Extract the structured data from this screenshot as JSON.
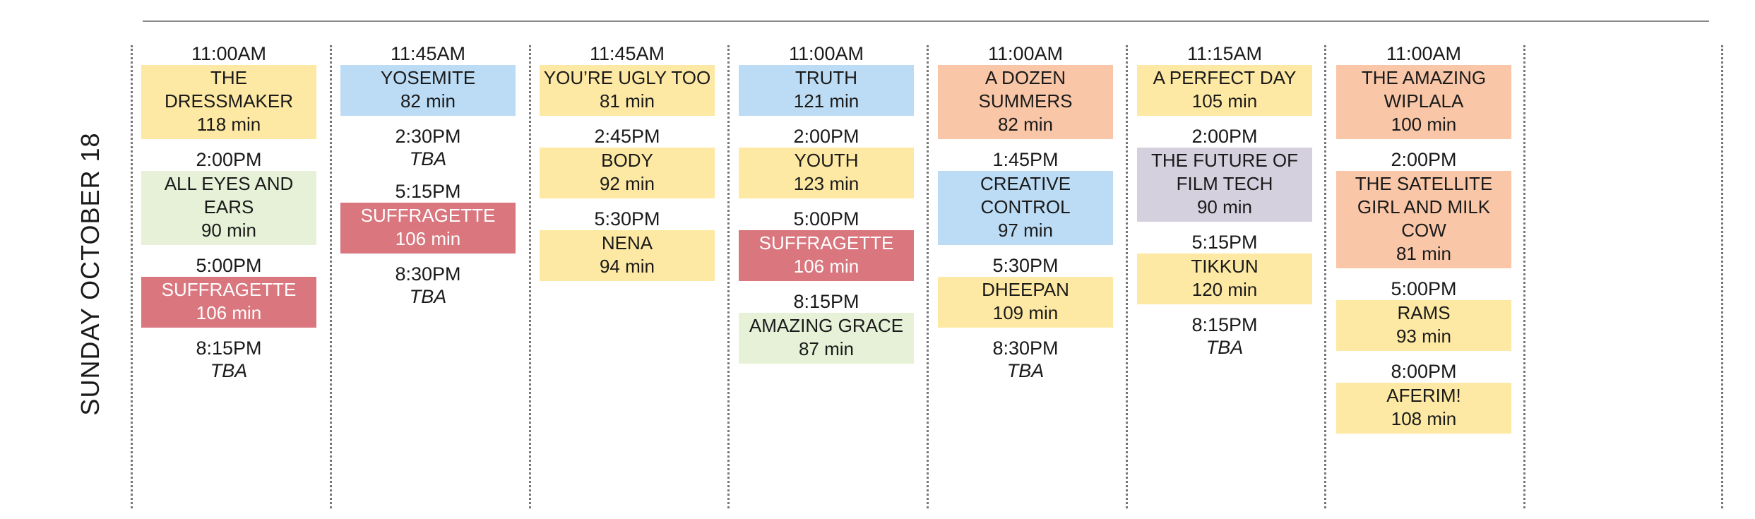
{
  "day": "SUNDAY  OCTOBER 18",
  "colors": {
    "yellow": "#fde9a3",
    "blue": "#bcdcf5",
    "green": "#e6f1d8",
    "red": "#d9767e",
    "orange": "#f9c7a8",
    "lavender": "#d4d0de"
  },
  "columns": [
    {
      "slots": [
        {
          "time": "11:00AM",
          "title": "THE DRESSMAKER",
          "duration": "118 min",
          "color": "yellow"
        },
        {
          "time": "2:00PM",
          "title": "ALL EYES AND EARS",
          "duration": "90 min",
          "color": "green"
        },
        {
          "time": "5:00PM",
          "title": "SUFFRAGETTE",
          "duration": "106 min",
          "color": "red"
        },
        {
          "time": "8:15PM",
          "tba": "TBA"
        }
      ]
    },
    {
      "slots": [
        {
          "time": "11:45AM",
          "title": "YOSEMITE",
          "duration": "82 min",
          "color": "blue"
        },
        {
          "time": "2:30PM",
          "tba": "TBA"
        },
        {
          "time": "5:15PM",
          "title": "SUFFRAGETTE",
          "duration": "106 min",
          "color": "red"
        },
        {
          "time": "8:30PM",
          "tba": "TBA"
        }
      ]
    },
    {
      "slots": [
        {
          "time": "11:45AM",
          "title": "YOU’RE UGLY TOO",
          "duration": "81 min",
          "color": "yellow"
        },
        {
          "time": "2:45PM",
          "title": "BODY",
          "duration": "92 min",
          "color": "yellow"
        },
        {
          "time": "5:30PM",
          "title": "NENA",
          "duration": "94 min",
          "color": "yellow"
        }
      ]
    },
    {
      "slots": [
        {
          "time": "11:00AM",
          "title": "TRUTH",
          "duration": "121 min",
          "color": "blue"
        },
        {
          "time": "2:00PM",
          "title": "YOUTH",
          "duration": "123 min",
          "color": "yellow"
        },
        {
          "time": "5:00PM",
          "title": "SUFFRAGETTE",
          "duration": "106 min",
          "color": "red"
        },
        {
          "time": "8:15PM",
          "title": "AMAZING GRACE",
          "duration": "87 min",
          "color": "green"
        }
      ]
    },
    {
      "slots": [
        {
          "time": "11:00AM",
          "title": "A DOZEN SUMMERS",
          "duration": "82 min",
          "color": "orange"
        },
        {
          "time": "1:45PM",
          "title": "CREATIVE CONTROL",
          "duration": "97 min",
          "color": "blue"
        },
        {
          "time": "5:30PM",
          "title": "DHEEPAN",
          "duration": "109 min",
          "color": "yellow"
        },
        {
          "time": "8:30PM",
          "tba": "TBA"
        }
      ]
    },
    {
      "slots": [
        {
          "time": "11:15AM",
          "title": "A PERFECT DAY",
          "duration": "105 min",
          "color": "yellow"
        },
        {
          "time": "2:00PM",
          "title": "THE FUTURE OF FILM TECH",
          "duration": "90 min",
          "color": "lavender"
        },
        {
          "time": "5:15PM",
          "title": "TIKKUN",
          "duration": "120 min",
          "color": "yellow"
        },
        {
          "time": "8:15PM",
          "tba": "TBA"
        }
      ]
    },
    {
      "slots": [
        {
          "time": "11:00AM",
          "title": "THE AMAZING WIPLALA",
          "duration": "100 min",
          "color": "orange"
        },
        {
          "time": "2:00PM",
          "title": "THE SATELLITE GIRL AND MILK COW",
          "duration": "81 min",
          "color": "orange"
        },
        {
          "time": "5:00PM",
          "title": "RAMS",
          "duration": "93 min",
          "color": "yellow"
        },
        {
          "time": "8:00PM",
          "title": "AFERIM!",
          "duration": "108 min",
          "color": "yellow"
        }
      ]
    }
  ]
}
